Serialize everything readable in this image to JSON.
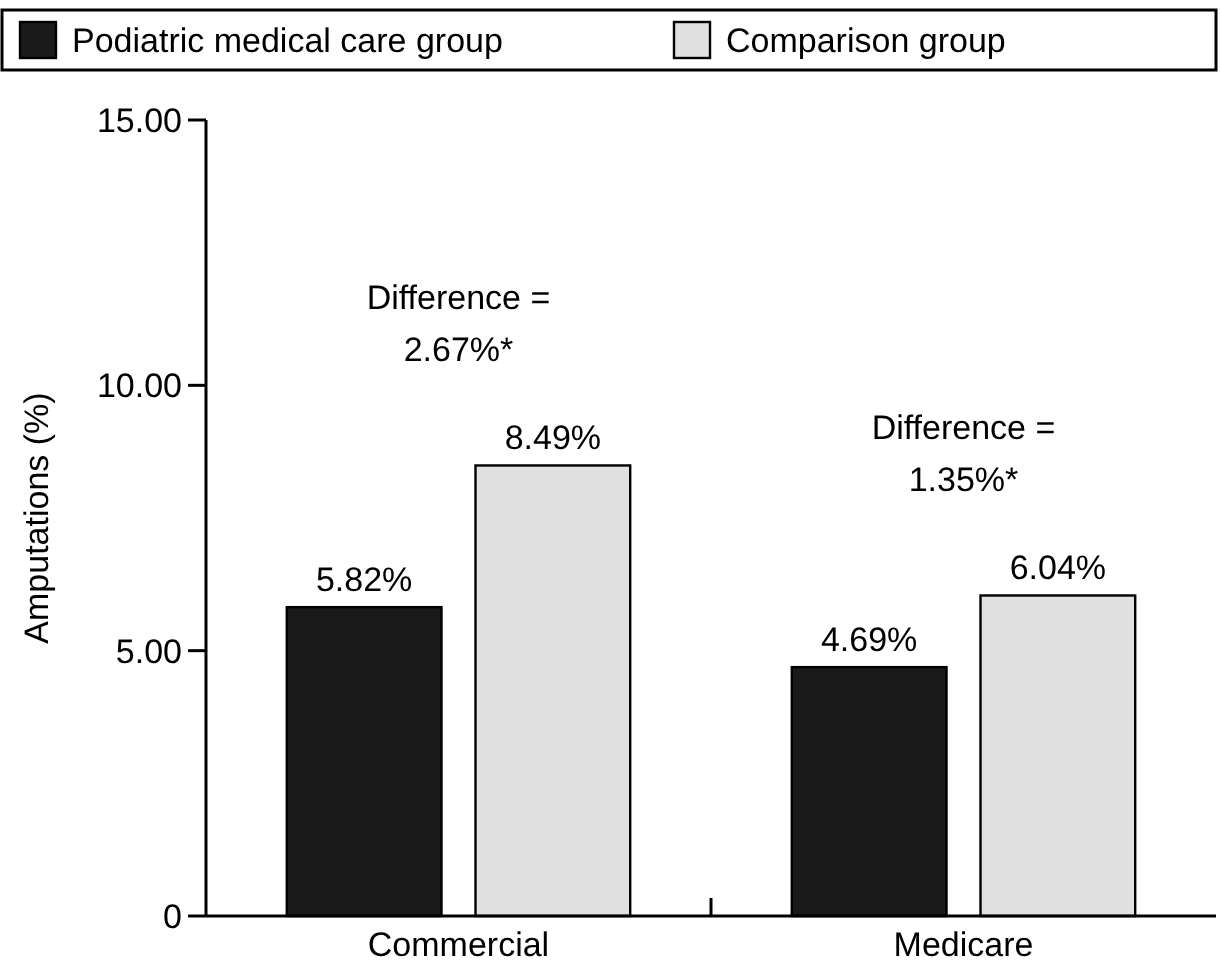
{
  "chart_data": {
    "type": "bar",
    "ylabel": "Amputations (%)",
    "categories": [
      "Commercial",
      "Medicare"
    ],
    "series": [
      {
        "name": "Podiatric medical care group",
        "color": "#1a1a1a",
        "values": [
          5.82,
          4.69
        ],
        "value_labels": [
          "5.82%",
          "4.69%"
        ]
      },
      {
        "name": "Comparison group",
        "color": "#e0e0e0",
        "values": [
          8.49,
          6.04
        ],
        "value_labels": [
          "8.49%",
          "6.04%"
        ]
      }
    ],
    "ylim": [
      0,
      15
    ],
    "yticks": [
      0,
      {
        "value": 5,
        "label": "5.00"
      },
      {
        "value": 10,
        "label": "10.00"
      },
      {
        "value": 15,
        "label": "15.00"
      }
    ],
    "legend": "top",
    "grid": false,
    "annotations": [
      "Difference =\n2.67%*",
      "Difference =\n1.35%*"
    ]
  }
}
